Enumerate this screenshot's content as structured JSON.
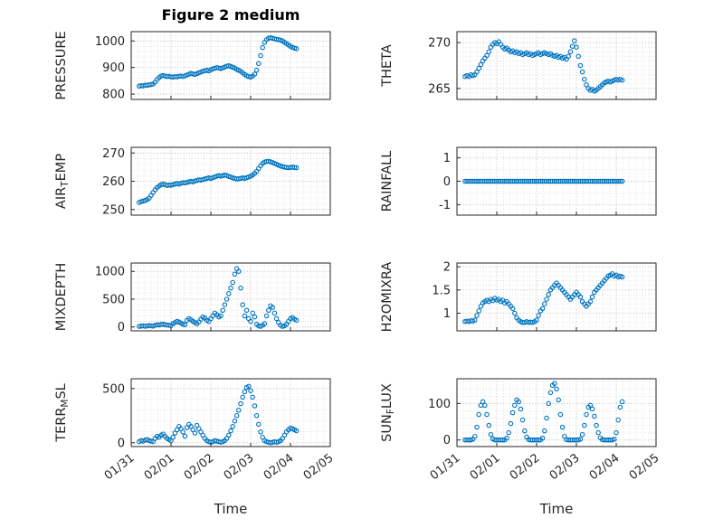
{
  "chart_data": {
    "type": "scatter",
    "figure_title": "Figure 2 medium",
    "xlabel": "Time",
    "marker_color": "#0072BD",
    "marker": "o",
    "linestyle": "none",
    "grid": "on",
    "minor_grid": "on",
    "xlim": [
      0,
      5
    ],
    "xticks": [
      0,
      1,
      2,
      3,
      4,
      5
    ],
    "xtick_labels": [
      "01/31",
      "02/01",
      "02/02",
      "02/03",
      "02/04",
      "02/05"
    ],
    "x_minor_step": 0.1667,
    "x_unit": "days since 01/31",
    "x": [
      0.2,
      0.25,
      0.3,
      0.35,
      0.4,
      0.45,
      0.5,
      0.55,
      0.6,
      0.65,
      0.7,
      0.75,
      0.8,
      0.85,
      0.9,
      0.95,
      1,
      1.05,
      1.1,
      1.15,
      1.2,
      1.25,
      1.3,
      1.35,
      1.4,
      1.45,
      1.5,
      1.55,
      1.6,
      1.65,
      1.7,
      1.75,
      1.8,
      1.85,
      1.9,
      1.95,
      2,
      2.05,
      2.1,
      2.15,
      2.2,
      2.25,
      2.3,
      2.35,
      2.4,
      2.45,
      2.5,
      2.55,
      2.6,
      2.65,
      2.7,
      2.75,
      2.8,
      2.85,
      2.9,
      2.95,
      3,
      3.05,
      3.1,
      3.15,
      3.2,
      3.25,
      3.3,
      3.35,
      3.4,
      3.45,
      3.5,
      3.55,
      3.6,
      3.65,
      3.7,
      3.75,
      3.8,
      3.85,
      3.9,
      3.95,
      4,
      4.05,
      4.1,
      4.15
    ],
    "charts": [
      {
        "name": "PRESSURE",
        "col": 0,
        "row": 0,
        "ylabel_parts": [
          {
            "t": "PRESSURE"
          }
        ],
        "yticks": [
          800,
          900,
          1000
        ],
        "ytick_labels": [
          "800",
          "900",
          "1000"
        ],
        "ylim": [
          780,
          1035
        ],
        "y_minor_step": 20,
        "y": [
          830,
          832,
          831,
          834,
          833,
          835,
          836,
          838,
          845,
          855,
          862,
          868,
          870,
          868,
          866,
          867,
          865,
          864,
          866,
          865,
          867,
          868,
          866,
          869,
          872,
          875,
          878,
          876,
          874,
          877,
          880,
          883,
          886,
          888,
          890,
          887,
          892,
          895,
          897,
          900,
          898,
          896,
          899,
          902,
          905,
          907,
          904,
          901,
          898,
          893,
          890,
          886,
          880,
          874,
          869,
          866,
          864,
          868,
          875,
          890,
          915,
          945,
          975,
          995,
          1005,
          1010,
          1012,
          1010,
          1008,
          1006,
          1005,
          1003,
          1000,
          995,
          990,
          985,
          980,
          976,
          973,
          971
        ]
      },
      {
        "name": "AIR_TEMP",
        "col": 0,
        "row": 1,
        "ylabel_parts": [
          {
            "t": "AIR"
          },
          {
            "t": "T",
            "sub": true
          },
          {
            "t": "EMP"
          }
        ],
        "yticks": [
          250,
          260,
          270
        ],
        "ytick_labels": [
          "250",
          "260",
          "270"
        ],
        "ylim": [
          248,
          272
        ],
        "y_minor_step": 2,
        "y": [
          252.5,
          252.8,
          253,
          253.2,
          253.5,
          254,
          255,
          256,
          257,
          257.8,
          258.3,
          258.8,
          259,
          258.8,
          258.5,
          258.7,
          258.6,
          258.8,
          259,
          259.2,
          259,
          259.3,
          259.5,
          259.4,
          259.6,
          259.8,
          260,
          259.8,
          260.1,
          260.3,
          260.5,
          260.4,
          260.6,
          260.8,
          261,
          261.2,
          261,
          261.3,
          261.5,
          261.8,
          262,
          261.8,
          262,
          262.2,
          262,
          261.7,
          261.5,
          261.2,
          261,
          260.8,
          260.9,
          261,
          261.2,
          261,
          261.3,
          261.5,
          261.8,
          262.2,
          262.8,
          263.5,
          264.5,
          265.5,
          266.3,
          266.8,
          267,
          267.1,
          266.9,
          266.6,
          266.3,
          266,
          265.7,
          265.4,
          265.2,
          265,
          264.9,
          264.8,
          264.9,
          265,
          264.9,
          264.8
        ]
      },
      {
        "name": "MIXDEPTH",
        "col": 0,
        "row": 2,
        "ylabel_parts": [
          {
            "t": "MIXDEPTH"
          }
        ],
        "yticks": [
          0,
          500,
          1000
        ],
        "ytick_labels": [
          "0",
          "500",
          "1000"
        ],
        "ylim": [
          -70,
          1150
        ],
        "y_minor_step": 100,
        "y": [
          10,
          15,
          20,
          12,
          18,
          25,
          20,
          15,
          30,
          40,
          35,
          45,
          50,
          40,
          35,
          30,
          25,
          60,
          80,
          100,
          90,
          70,
          50,
          40,
          120,
          150,
          130,
          100,
          80,
          60,
          90,
          140,
          180,
          160,
          120,
          100,
          150,
          200,
          250,
          220,
          180,
          200,
          300,
          400,
          500,
          600,
          700,
          800,
          950,
          1050,
          1000,
          700,
          400,
          200,
          300,
          150,
          100,
          250,
          180,
          50,
          20,
          10,
          30,
          60,
          200,
          300,
          380,
          350,
          250,
          150,
          80,
          30,
          10,
          20,
          50,
          100,
          150,
          170,
          140,
          120
        ]
      },
      {
        "name": "TERR_MSL",
        "col": 0,
        "row": 3,
        "ylabel_parts": [
          {
            "t": "TERR"
          },
          {
            "t": "M",
            "sub": true
          },
          {
            "t": "SL"
          }
        ],
        "yticks": [
          0,
          500
        ],
        "ytick_labels": [
          "0",
          "500"
        ],
        "ylim": [
          -35,
          590
        ],
        "y_minor_step": 100,
        "y": [
          10,
          20,
          15,
          25,
          30,
          20,
          15,
          10,
          40,
          60,
          50,
          70,
          80,
          60,
          40,
          30,
          20,
          50,
          90,
          120,
          150,
          130,
          100,
          60,
          140,
          170,
          150,
          120,
          90,
          160,
          130,
          100,
          70,
          40,
          20,
          10,
          5,
          10,
          20,
          15,
          10,
          5,
          10,
          20,
          40,
          70,
          110,
          150,
          200,
          250,
          300,
          360,
          420,
          470,
          510,
          520,
          480,
          420,
          340,
          250,
          170,
          100,
          50,
          20,
          10,
          5,
          0,
          5,
          10,
          5,
          10,
          20,
          40,
          70,
          100,
          120,
          135,
          130,
          120,
          110
        ]
      },
      {
        "name": "THETA",
        "col": 1,
        "row": 0,
        "ylabel_parts": [
          {
            "t": "THETA"
          }
        ],
        "yticks": [
          265,
          270
        ],
        "ytick_labels": [
          "265",
          "270"
        ],
        "ylim": [
          263.8,
          271.2
        ],
        "y_minor_step": 0.5,
        "y": [
          266.3,
          266.4,
          266.3,
          266.5,
          266.4,
          266.5,
          266.8,
          267.2,
          267.6,
          268,
          268.3,
          268.6,
          269,
          269.5,
          269.8,
          270,
          269.9,
          270.1,
          269.8,
          269.5,
          269.3,
          269.4,
          269.2,
          269,
          269.1,
          268.9,
          269,
          268.8,
          268.9,
          268.7,
          268.8,
          268.9,
          268.7,
          268.8,
          268.6,
          268.7,
          268.8,
          268.9,
          268.7,
          268.8,
          268.9,
          268.8,
          268.7,
          268.8,
          268.6,
          268.5,
          268.6,
          268.4,
          268.5,
          268.3,
          268.4,
          268.2,
          268.5,
          269,
          269.6,
          270.2,
          269.5,
          268.5,
          267.5,
          266.8,
          266,
          265.4,
          265,
          264.8,
          264.9,
          264.7,
          264.8,
          265,
          265.2,
          265.4,
          265.6,
          265.7,
          265.8,
          265.7,
          265.8,
          265.9,
          266,
          265.9,
          266,
          265.9
        ]
      },
      {
        "name": "RAINFALL",
        "col": 1,
        "row": 1,
        "ylabel_parts": [
          {
            "t": "RAINFALL"
          }
        ],
        "yticks": [
          -1,
          0,
          1
        ],
        "ytick_labels": [
          "-1",
          "0",
          "1"
        ],
        "ylim": [
          -1.45,
          1.45
        ],
        "y_minor_step": 0.5,
        "y": [
          0,
          0,
          0,
          0,
          0,
          0,
          0,
          0,
          0,
          0,
          0,
          0,
          0,
          0,
          0,
          0,
          0,
          0,
          0,
          0,
          0,
          0,
          0,
          0,
          0,
          0,
          0,
          0,
          0,
          0,
          0,
          0,
          0,
          0,
          0,
          0,
          0,
          0,
          0,
          0,
          0,
          0,
          0,
          0,
          0,
          0,
          0,
          0,
          0,
          0,
          0,
          0,
          0,
          0,
          0,
          0,
          0,
          0,
          0,
          0,
          0,
          0,
          0,
          0,
          0,
          0,
          0,
          0,
          0,
          0,
          0,
          0,
          0,
          0,
          0,
          0,
          0,
          0,
          0,
          0
        ]
      },
      {
        "name": "H2OMIXRA",
        "col": 1,
        "row": 2,
        "ylabel_parts": [
          {
            "t": "H2OMIXRA"
          }
        ],
        "yticks": [
          1,
          1.5,
          2
        ],
        "ytick_labels": [
          "1",
          "1.5",
          "2"
        ],
        "ylim": [
          0.62,
          2.08
        ],
        "y_minor_step": 0.1,
        "y": [
          0.82,
          0.83,
          0.82,
          0.84,
          0.83,
          0.85,
          0.95,
          1.05,
          1.15,
          1.22,
          1.25,
          1.28,
          1.25,
          1.3,
          1.27,
          1.32,
          1.28,
          1.3,
          1.25,
          1.28,
          1.22,
          1.25,
          1.2,
          1.15,
          1.1,
          1,
          0.9,
          0.85,
          0.82,
          0.8,
          0.8,
          0.82,
          0.8,
          0.81,
          0.8,
          0.82,
          0.85,
          0.95,
          1.05,
          1.1,
          1.2,
          1.3,
          1.4,
          1.5,
          1.55,
          1.6,
          1.65,
          1.6,
          1.55,
          1.5,
          1.45,
          1.4,
          1.35,
          1.3,
          1.35,
          1.4,
          1.45,
          1.4,
          1.35,
          1.25,
          1.2,
          1.15,
          1.2,
          1.25,
          1.35,
          1.45,
          1.5,
          1.55,
          1.6,
          1.65,
          1.7,
          1.75,
          1.8,
          1.82,
          1.85,
          1.8,
          1.82,
          1.78,
          1.8,
          1.78
        ]
      },
      {
        "name": "SUN_FLUX",
        "col": 1,
        "row": 3,
        "ylabel_parts": [
          {
            "t": "SUN"
          },
          {
            "t": "F",
            "sub": true
          },
          {
            "t": "LUX"
          }
        ],
        "yticks": [
          0,
          100
        ],
        "ytick_labels": [
          "0",
          "100"
        ],
        "ylim": [
          -18,
          168
        ],
        "y_minor_step": 20,
        "y": [
          0,
          0,
          0,
          0,
          2,
          10,
          35,
          70,
          95,
          105,
          95,
          70,
          40,
          15,
          3,
          0,
          0,
          0,
          0,
          0,
          0,
          5,
          20,
          45,
          75,
          95,
          110,
          105,
          85,
          55,
          25,
          8,
          1,
          0,
          0,
          0,
          0,
          0,
          0,
          5,
          25,
          60,
          100,
          130,
          150,
          155,
          140,
          110,
          70,
          35,
          10,
          1,
          0,
          0,
          0,
          0,
          0,
          0,
          2,
          15,
          40,
          70,
          90,
          95,
          85,
          65,
          40,
          20,
          6,
          1,
          0,
          0,
          0,
          0,
          0,
          2,
          20,
          55,
          90,
          105
        ]
      }
    ]
  }
}
